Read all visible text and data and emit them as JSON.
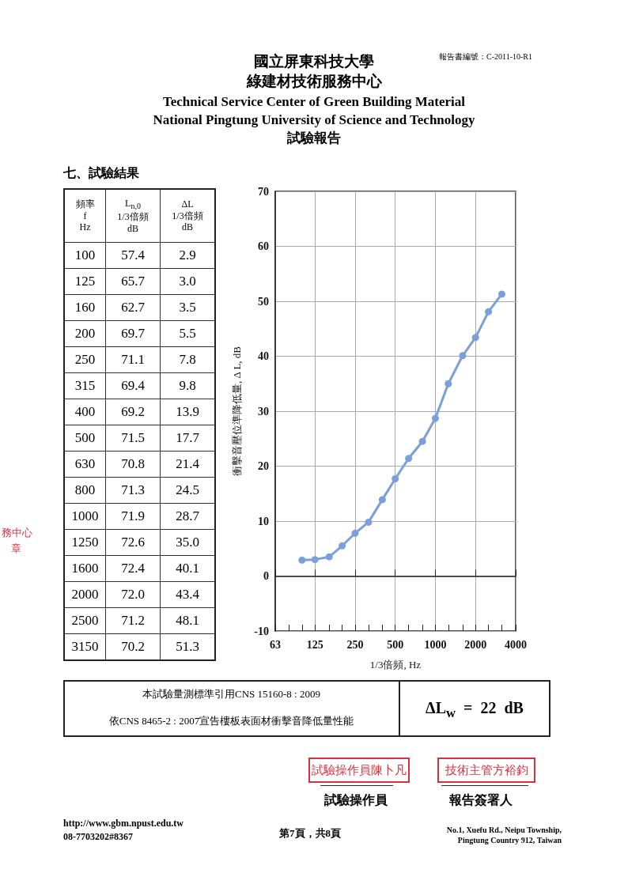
{
  "chart_data": [
    {
      "type": "other",
      "title": "七、試驗結果",
      "xlabel": "頻率\nf\nHz",
      "categories": [
        "100",
        "125",
        "160",
        "200",
        "250",
        "315",
        "400",
        "500",
        "630",
        "800",
        "1000",
        "1250",
        "1600",
        "2000",
        "2500",
        "3150"
      ],
      "series": [
        {
          "name": "L$_{n,0}$\n1/3倍頻\ndB",
          "values": [
            57.4,
            65.7,
            62.7,
            69.7,
            71.1,
            69.4,
            69.2,
            71.5,
            70.8,
            71.3,
            71.9,
            72.6,
            72.4,
            72.0,
            71.2,
            70.2
          ],
          "value_labels": [
            "57.4",
            "65.7",
            "62.7",
            "69.7",
            "71.1",
            "69.4",
            "69.2",
            "71.5",
            "70.8",
            "71.3",
            "71.9",
            "72.6",
            "72.4",
            "72.0",
            "71.2",
            "70.2"
          ]
        },
        {
          "name": "ΔL\n1/3倍頻\ndB",
          "values": [
            2.9,
            3.0,
            3.5,
            5.5,
            7.8,
            9.8,
            13.9,
            17.7,
            21.4,
            24.5,
            28.7,
            35.0,
            40.1,
            43.4,
            48.1,
            51.3
          ],
          "value_labels": [
            "2.9",
            "3.0",
            "3.5",
            "5.5",
            "7.8",
            "9.8",
            "13.9",
            "17.7",
            "21.4",
            "24.5",
            "28.7",
            "35.0",
            "40.1",
            "43.4",
            "48.1",
            "51.3"
          ]
        }
      ],
      "annotations": [
        "國立屏東科技大學",
        "綠建材技術服務中心",
        "Technical Service Center of Green Building Material",
        "National Pingtung University of Science and Technology",
        "試驗報告",
        "報告書編號：C-2011-10-R1",
        "本試驗量測標準引用CNS 15160-8 : 2009",
        "依CNS 8465-2 : 2007宣告樓板表面材衝擊音降低量性能",
        "ΔL$_{w}$  =  22  dB",
        "試驗操作員陳卜凡",
        "技術主管方裕鈞",
        "試驗操作員",
        "報告簽署人",
        "http://www.gbm.npust.edu.tw",
        "08-7703202#8367",
        "第7頁，共8頁",
        "No.1, Xuefu Rd., Neipu Township,\nPingtung Country 912, Taiwan",
        "務中心",
        "章"
      ]
    },
    {
      "type": "line",
      "xlabel": "1/3倍頻, Hz",
      "ylabel": "衝擊音壓位準降低量, Δ L, dB",
      "color": "#7b9fd8",
      "marker": "circle",
      "grid": true,
      "log": "x",
      "x": [
        100,
        125,
        160,
        200,
        250,
        315,
        400,
        500,
        630,
        800,
        1000,
        1250,
        1600,
        2000,
        2500,
        3150
      ],
      "values": [
        2.9,
        3.0,
        3.5,
        5.5,
        7.8,
        9.8,
        13.9,
        17.7,
        21.4,
        24.5,
        28.7,
        35.0,
        40.1,
        43.4,
        48.1,
        51.3
      ],
      "xlim": [
        63,
        4000
      ],
      "xticks": [
        63,
        {
          "value": 80,
          "label": null
        },
        {
          "value": 100,
          "label": null
        },
        125,
        {
          "value": 160,
          "label": null
        },
        {
          "value": 200,
          "label": null
        },
        250,
        {
          "value": 315,
          "label": null
        },
        {
          "value": 400,
          "label": null
        },
        500,
        {
          "value": 630,
          "label": null
        },
        {
          "value": 800,
          "label": null
        },
        1000,
        {
          "value": 1250,
          "label": null
        },
        {
          "value": 1600,
          "label": null
        },
        2000,
        {
          "value": 2500,
          "label": null
        },
        {
          "value": 3150,
          "label": null
        },
        4000
      ],
      "ylim": [
        -10,
        70
      ],
      "yticks": [
        -10,
        0,
        10,
        20,
        30,
        40,
        50,
        60,
        70
      ]
    }
  ]
}
